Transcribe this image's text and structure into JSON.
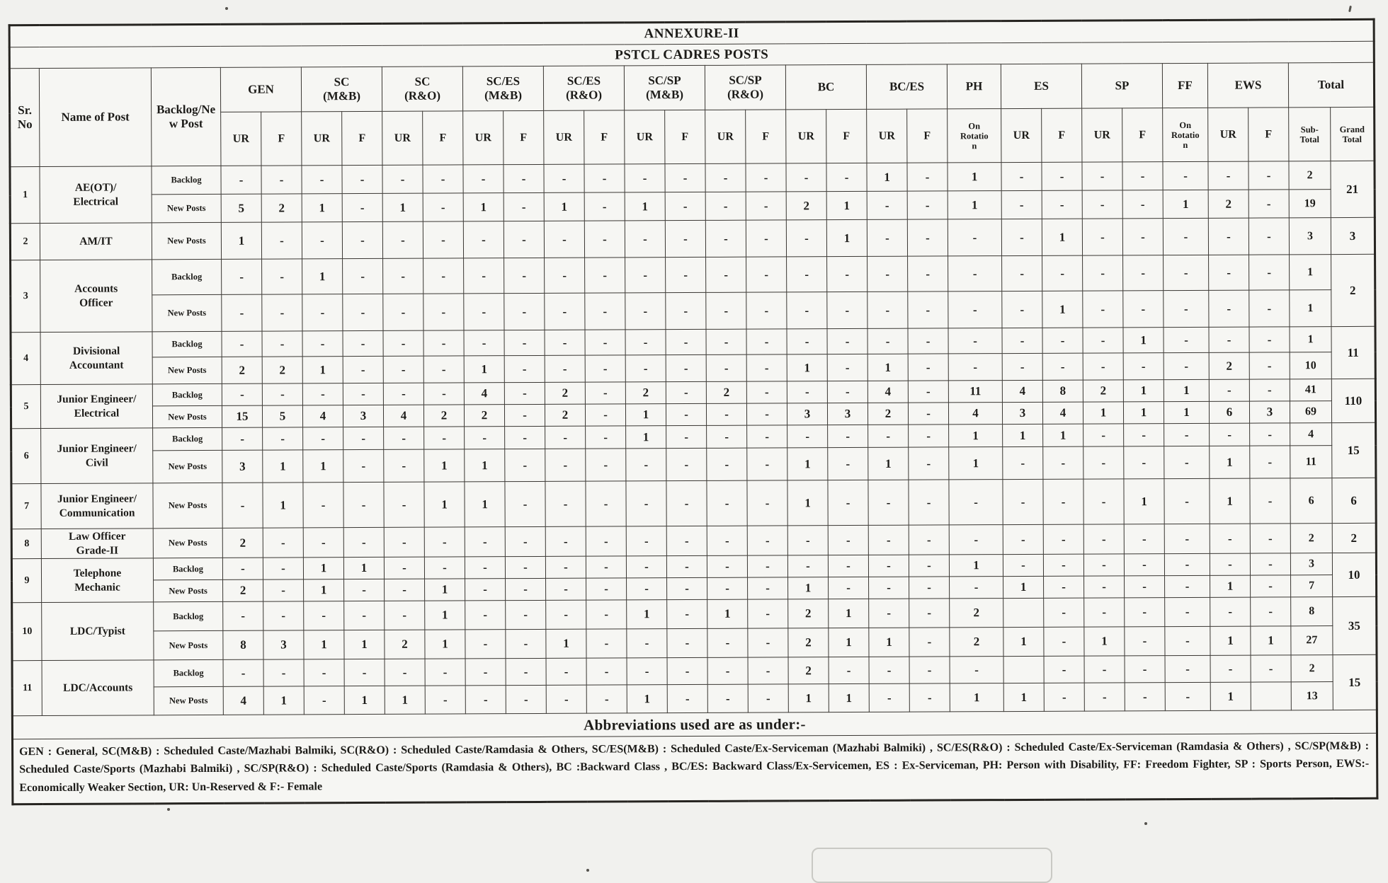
{
  "page": {
    "annexure_title": "ANNEXURE-II",
    "table_title": "PSTCL CADRES POSTS"
  },
  "header": {
    "sr_no": "Sr.\nNo",
    "name_of_post": "Name of Post",
    "backlog_new_post": "Backlog/Ne\nw Post",
    "groups": [
      {
        "label": "GEN",
        "subs": [
          "UR",
          "F"
        ]
      },
      {
        "label": "SC\n(M&B)",
        "subs": [
          "UR",
          "F"
        ]
      },
      {
        "label": "SC\n(R&O)",
        "subs": [
          "UR",
          "F"
        ]
      },
      {
        "label": "SC/ES\n(M&B)",
        "subs": [
          "UR",
          "F"
        ]
      },
      {
        "label": "SC/ES\n(R&O)",
        "subs": [
          "UR",
          "F"
        ]
      },
      {
        "label": "SC/SP\n(M&B)",
        "subs": [
          "UR",
          "F"
        ]
      },
      {
        "label": "SC/SP\n(R&O)",
        "subs": [
          "UR",
          "F"
        ]
      },
      {
        "label": "BC",
        "subs": [
          "UR",
          "F"
        ]
      },
      {
        "label": "BC/ES",
        "subs": [
          "UR",
          "F"
        ]
      },
      {
        "label": "PH",
        "subs": [
          "On\nRotatio\nn"
        ]
      },
      {
        "label": "ES",
        "subs": [
          "UR",
          "F"
        ]
      },
      {
        "label": "SP",
        "subs": [
          "UR",
          "F"
        ]
      },
      {
        "label": "FF",
        "subs": [
          "On\nRotatio\nn"
        ]
      },
      {
        "label": "EWS",
        "subs": [
          "UR",
          "F"
        ]
      },
      {
        "label": "Total",
        "subs": [
          "Sub-\nTotal",
          "Grand\nTotal"
        ]
      }
    ]
  },
  "rows": [
    {
      "sr": "1",
      "name": "AE(OT)/\nElectrical",
      "grand": "21",
      "subrows": [
        {
          "label": "Backlog",
          "cells": [
            "-",
            "-",
            "-",
            "-",
            "-",
            "-",
            "-",
            "-",
            "-",
            "-",
            "-",
            "-",
            "-",
            "-",
            "-",
            "-",
            "1",
            "-",
            "1",
            "-",
            "-",
            "-",
            "-",
            "-",
            "-",
            "-",
            "2"
          ]
        },
        {
          "label": "New Posts",
          "cells": [
            "5",
            "2",
            "1",
            "-",
            "1",
            "-",
            "1",
            "-",
            "1",
            "-",
            "1",
            "-",
            "-",
            "-",
            "2",
            "1",
            "-",
            "-",
            "1",
            "-",
            "-",
            "-",
            "-",
            "1",
            "2",
            "-",
            "19"
          ]
        }
      ]
    },
    {
      "sr": "2",
      "name": "AM/IT",
      "grand": "3",
      "subrows": [
        {
          "label": "New Posts",
          "cells": [
            "1",
            "-",
            "-",
            "-",
            "-",
            "-",
            "-",
            "-",
            "-",
            "-",
            "-",
            "-",
            "-",
            "-",
            "-",
            "1",
            "-",
            "-",
            "-",
            "-",
            "1",
            "-",
            "-",
            "-",
            "-",
            "-",
            "3"
          ]
        }
      ]
    },
    {
      "sr": "3",
      "name": "Accounts\nOfficer",
      "grand": "2",
      "subrows": [
        {
          "label": "Backlog",
          "cells": [
            "-",
            "-",
            "1",
            "-",
            "-",
            "-",
            "-",
            "-",
            "-",
            "-",
            "-",
            "-",
            "-",
            "-",
            "-",
            "-",
            "-",
            "-",
            "-",
            "-",
            "-",
            "-",
            "-",
            "-",
            "-",
            "-",
            "1"
          ]
        },
        {
          "label": "New Posts",
          "cells": [
            "-",
            "-",
            "-",
            "-",
            "-",
            "-",
            "-",
            "-",
            "-",
            "-",
            "-",
            "-",
            "-",
            "-",
            "-",
            "-",
            "-",
            "-",
            "-",
            "-",
            "1",
            "-",
            "-",
            "-",
            "-",
            "-",
            "1"
          ]
        }
      ]
    },
    {
      "sr": "4",
      "name": "Divisional\nAccountant",
      "grand": "11",
      "subrows": [
        {
          "label": "Backlog",
          "cells": [
            "-",
            "-",
            "-",
            "-",
            "-",
            "-",
            "-",
            "-",
            "-",
            "-",
            "-",
            "-",
            "-",
            "-",
            "-",
            "-",
            "-",
            "-",
            "-",
            "-",
            "-",
            "-",
            "1",
            "-",
            "-",
            "-",
            "1"
          ]
        },
        {
          "label": "New Posts",
          "cells": [
            "2",
            "2",
            "1",
            "-",
            "-",
            "-",
            "1",
            "-",
            "-",
            "-",
            "-",
            "-",
            "-",
            "-",
            "1",
            "-",
            "1",
            "-",
            "-",
            "-",
            "-",
            "-",
            "-",
            "-",
            "2",
            "-",
            "10"
          ]
        }
      ]
    },
    {
      "sr": "5",
      "name": "Junior Engineer/\nElectrical",
      "grand": "110",
      "subrows": [
        {
          "label": "Backlog",
          "cells": [
            "-",
            "-",
            "-",
            "-",
            "-",
            "-",
            "4",
            "-",
            "2",
            "-",
            "2",
            "-",
            "2",
            "-",
            "-",
            "-",
            "4",
            "-",
            "11",
            "4",
            "8",
            "2",
            "1",
            "1",
            "-",
            "-",
            "41"
          ]
        },
        {
          "label": "New Posts",
          "cells": [
            "15",
            "5",
            "4",
            "3",
            "4",
            "2",
            "2",
            "-",
            "2",
            "-",
            "1",
            "-",
            "-",
            "-",
            "3",
            "3",
            "2",
            "-",
            "4",
            "3",
            "4",
            "1",
            "1",
            "1",
            "6",
            "3",
            "69"
          ]
        }
      ]
    },
    {
      "sr": "6",
      "name": "Junior Engineer/\nCivil",
      "grand": "15",
      "subrows": [
        {
          "label": "Backlog",
          "cells": [
            "-",
            "-",
            "-",
            "-",
            "-",
            "-",
            "-",
            "-",
            "-",
            "-",
            "1",
            "-",
            "-",
            "-",
            "-",
            "-",
            "-",
            "-",
            "1",
            "1",
            "1",
            "-",
            "-",
            "-",
            "-",
            "-",
            "4"
          ]
        },
        {
          "label": "New Posts",
          "cells": [
            "3",
            "1",
            "1",
            "-",
            "-",
            "1",
            "1",
            "-",
            "-",
            "-",
            "-",
            "-",
            "-",
            "-",
            "1",
            "-",
            "1",
            "-",
            "1",
            "-",
            "-",
            "-",
            "-",
            "-",
            "1",
            "-",
            "11"
          ]
        }
      ]
    },
    {
      "sr": "7",
      "name": "Junior Engineer/\nCommunication",
      "grand": "6",
      "subrows": [
        {
          "label": "New Posts",
          "cells": [
            "-",
            "1",
            "-",
            "-",
            "-",
            "1",
            "1",
            "-",
            "-",
            "-",
            "-",
            "-",
            "-",
            "-",
            "1",
            "-",
            "-",
            "-",
            "-",
            "-",
            "-",
            "-",
            "1",
            "-",
            "1",
            "-",
            "6"
          ]
        }
      ]
    },
    {
      "sr": "8",
      "name": "Law Officer\nGrade-II",
      "grand": "2",
      "subrows": [
        {
          "label": "New Posts",
          "cells": [
            "2",
            "-",
            "-",
            "-",
            "-",
            "-",
            "-",
            "-",
            "-",
            "-",
            "-",
            "-",
            "-",
            "-",
            "-",
            "-",
            "-",
            "-",
            "-",
            "-",
            "-",
            "-",
            "-",
            "-",
            "-",
            "-",
            "2"
          ]
        }
      ]
    },
    {
      "sr": "9",
      "name": "Telephone\nMechanic",
      "grand": "10",
      "subrows": [
        {
          "label": "Backlog",
          "cells": [
            "-",
            "-",
            "1",
            "1",
            "-",
            "-",
            "-",
            "-",
            "-",
            "-",
            "-",
            "-",
            "-",
            "-",
            "-",
            "-",
            "-",
            "-",
            "1",
            "-",
            "-",
            "-",
            "-",
            "-",
            "-",
            "-",
            "3"
          ]
        },
        {
          "label": "New Posts",
          "cells": [
            "2",
            "-",
            "1",
            "-",
            "-",
            "1",
            "-",
            "-",
            "-",
            "-",
            "-",
            "-",
            "-",
            "-",
            "1",
            "-",
            "-",
            "-",
            "-",
            "1",
            "-",
            "-",
            "-",
            "-",
            "1",
            "-",
            "7"
          ]
        }
      ]
    },
    {
      "sr": "10",
      "name": "LDC/Typist",
      "grand": "35",
      "subrows": [
        {
          "label": "Backlog",
          "cells": [
            "-",
            "-",
            "-",
            "-",
            "-",
            "1",
            "-",
            "-",
            "-",
            "-",
            "1",
            "-",
            "1",
            "-",
            "2",
            "1",
            "-",
            "-",
            "2",
            "",
            "-",
            "-",
            "-",
            "-",
            "-",
            "-",
            "8"
          ]
        },
        {
          "label": "New Posts",
          "cells": [
            "8",
            "3",
            "1",
            "1",
            "2",
            "1",
            "-",
            "-",
            "1",
            "-",
            "-",
            "-",
            "-",
            "-",
            "2",
            "1",
            "1",
            "-",
            "2",
            "1",
            "-",
            "1",
            "-",
            "-",
            "1",
            "1",
            "27"
          ]
        }
      ]
    },
    {
      "sr": "11",
      "name": "LDC/Accounts",
      "grand": "15",
      "subrows": [
        {
          "label": "Backlog",
          "cells": [
            "-",
            "-",
            "-",
            "-",
            "-",
            "-",
            "-",
            "-",
            "-",
            "-",
            "-",
            "-",
            "-",
            "-",
            "2",
            "-",
            "-",
            "-",
            "-",
            "",
            "-",
            "-",
            "-",
            "-",
            "-",
            "-",
            "2"
          ]
        },
        {
          "label": "New Posts",
          "cells": [
            "4",
            "1",
            "-",
            "1",
            "1",
            "-",
            "-",
            "-",
            "-",
            "-",
            "1",
            "-",
            "-",
            "-",
            "1",
            "1",
            "-",
            "-",
            "1",
            "1",
            "-",
            "-",
            "-",
            "-",
            "1",
            "",
            "13"
          ]
        }
      ]
    }
  ],
  "abbreviations": {
    "heading": "Abbreviations used are as under:-",
    "text": "GEN : General, SC(M&B) : Scheduled Caste/Mazhabi Balmiki, SC(R&O) : Scheduled Caste/Ramdasia & Others, SC/ES(M&B) : Scheduled Caste/Ex-Serviceman (Mazhabi Balmiki) , SC/ES(R&O) : Scheduled Caste/Ex-Serviceman (Ramdasia & Others) , SC/SP(M&B) : Scheduled Caste/Sports (Mazhabi Balmiki) , SC/SP(R&O) : Scheduled Caste/Sports (Ramdasia & Others), BC :Backward Class , BC/ES: Backward Class/Ex-Servicemen,    ES : Ex-Serviceman, PH: Person with Disability, FF: Freedom Fighter, SP  : Sports Person, EWS:- Economically Weaker Section, UR: Un-Reserved & F:- Female"
  }
}
